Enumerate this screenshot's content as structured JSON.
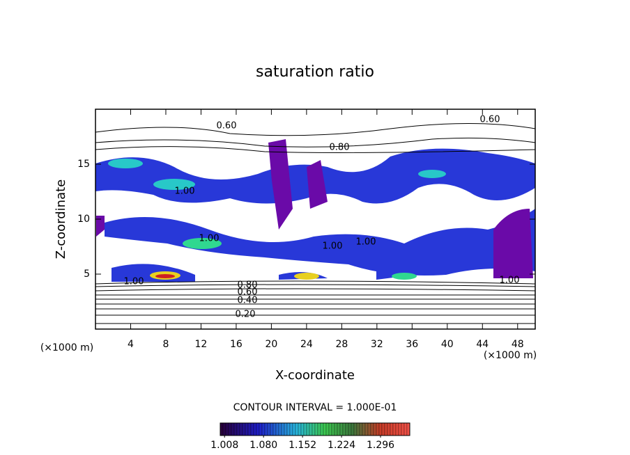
{
  "chart_data": {
    "type": "contour",
    "title": "saturation ratio",
    "xlabel": "X-coordinate",
    "ylabel": "Z-coordinate",
    "x_unit_label": "(×1000 m)",
    "xlim": [
      0,
      50
    ],
    "ylim": [
      0,
      20
    ],
    "xticks": [
      4,
      8,
      12,
      16,
      20,
      24,
      28,
      32,
      36,
      40,
      44,
      48
    ],
    "yticks": [
      5,
      10,
      15
    ],
    "contour_labels": [
      "0.60",
      "0.60",
      "0.80",
      "1.00",
      "1.00",
      "1.00",
      "1.00",
      "1.00",
      "1.00",
      "0.80",
      "0.60",
      "0.40",
      "0.20"
    ],
    "contour_interval_text": "CONTOUR INTERVAL = 1.000E-01",
    "colorbar": {
      "clim": [
        1.0,
        1.35
      ],
      "ticks": [
        1.008,
        {
          "value": 1.08,
          "label": "1.080"
        },
        1.152,
        1.224,
        1.296
      ]
    }
  }
}
